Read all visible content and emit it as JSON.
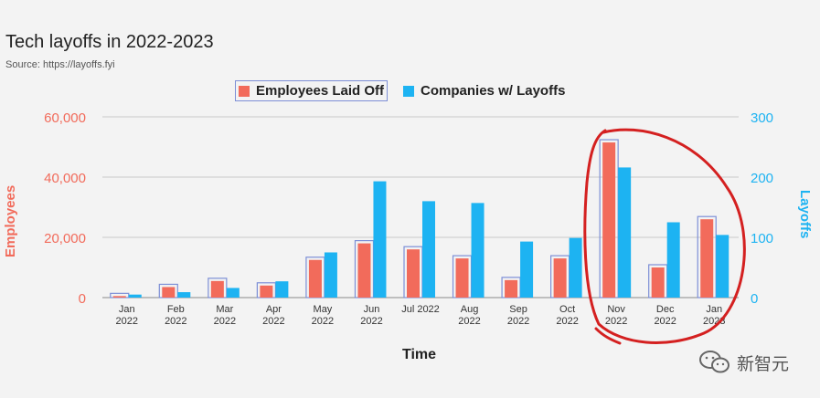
{
  "chart_data": {
    "type": "bar",
    "title": "Tech layoffs in 2022-2023",
    "subtitle": "Source: https://layoffs.fyi",
    "xlabel": "Time",
    "ylabel_left": "Employees",
    "ylabel_right": "Layoffs",
    "ylim_left": [
      0,
      60000
    ],
    "ylim_right": [
      0,
      300
    ],
    "yticks_left": [
      "0",
      "20,000",
      "40,000",
      "60,000"
    ],
    "yticks_right": [
      "0",
      "100",
      "200",
      "300"
    ],
    "grid": true,
    "legend_position": "top",
    "categories": [
      [
        "Jan",
        "2022"
      ],
      [
        "Feb",
        "2022"
      ],
      [
        "Mar",
        "2022"
      ],
      [
        "Apr",
        "2022"
      ],
      [
        "May",
        "2022"
      ],
      [
        "Jun",
        "2022"
      ],
      [
        "Jul 2022"
      ],
      [
        "Aug",
        "2022"
      ],
      [
        "Sep",
        "2022"
      ],
      [
        "Oct",
        "2022"
      ],
      [
        "Nov",
        "2022"
      ],
      [
        "Dec",
        "2022"
      ],
      [
        "Jan",
        "2023"
      ]
    ],
    "series": [
      {
        "name": "Employees Laid Off",
        "axis": "left",
        "color": "#f26b5b",
        "values": [
          500,
          3500,
          5500,
          4000,
          12500,
          18000,
          16000,
          13000,
          5800,
          13000,
          51500,
          10000,
          26000
        ]
      },
      {
        "name": "Companies w/ Layoffs",
        "axis": "right",
        "color": "#1db3f2",
        "values": [
          5,
          9,
          16,
          27,
          75,
          193,
          160,
          157,
          93,
          99,
          216,
          125,
          104
        ]
      }
    ]
  },
  "watermark": {
    "text": "新智元",
    "icon": "wechat-icon"
  }
}
